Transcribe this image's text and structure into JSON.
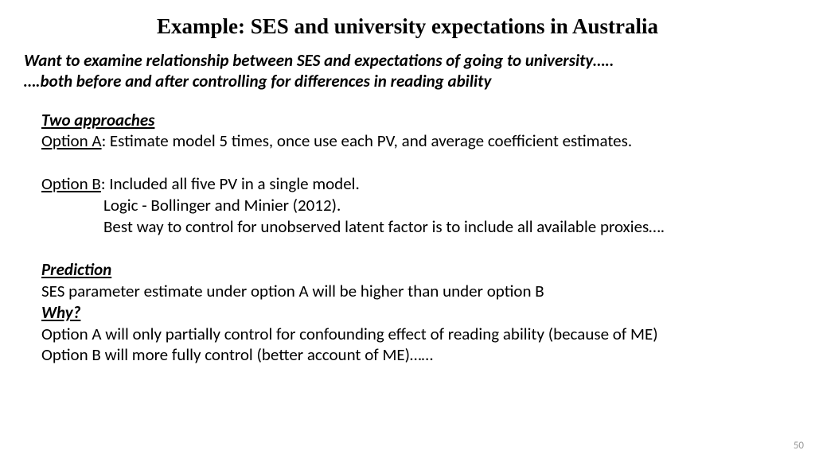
{
  "title": "Example: SES and university expectations in Australia",
  "intro": {
    "line1": "Want to examine relationship between SES and expectations of going to university…..",
    "line2": "….both before and after controlling for differences in reading ability"
  },
  "sections": {
    "approaches_head": "Two approaches",
    "optionA_label": "Option A",
    "optionA_text": ": Estimate model 5 times, once use each PV, and average coefficient estimates.",
    "optionB_label": "Option B",
    "optionB_text": ": Included all five PV in a single model.",
    "optionB_indent1": "Logic - Bollinger and Minier (2012).",
    "optionB_indent2": "Best way to control for unobserved latent factor is to include all available proxies….",
    "prediction_head": "Prediction",
    "prediction_text": "SES parameter estimate under option A will be higher than under option B",
    "why_head": "Why?",
    "why_line1": "Option A will only partially control for confounding effect of reading ability (because of ME)",
    "why_line2": "Option B will more fully control (better account of ME)……"
  },
  "page_number": "50",
  "colors": {
    "bg": "#ffffff",
    "text": "#000000",
    "pagenum": "#9a9a9a"
  },
  "fonts": {
    "title_family": "Times New Roman",
    "body_family": "Calibri",
    "title_size_pt": 20,
    "body_size_pt": 16
  }
}
